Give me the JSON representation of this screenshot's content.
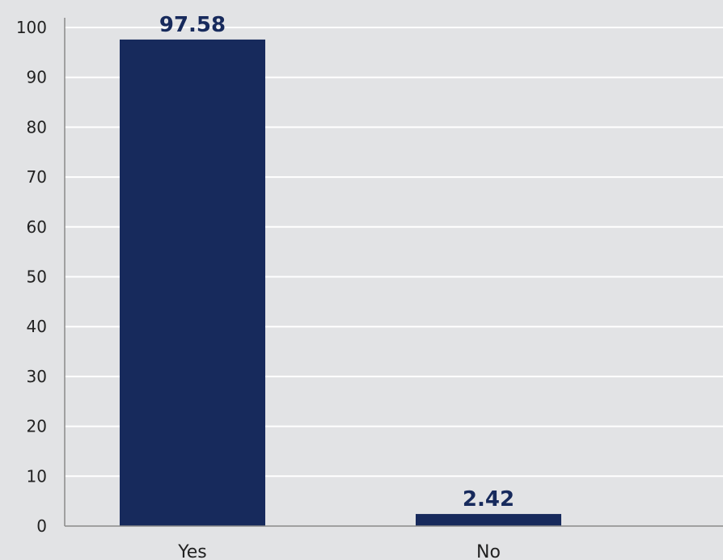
{
  "chart_data": {
    "type": "bar",
    "categories": [
      "Yes",
      "No"
    ],
    "values": [
      97.58,
      2.42
    ],
    "value_labels": [
      "97.58",
      "2.42"
    ],
    "ylim": [
      0,
      100
    ],
    "yticks": [
      0,
      10,
      20,
      30,
      40,
      50,
      60,
      70,
      80,
      90,
      100
    ],
    "ytick_labels": [
      "0",
      "10",
      "20",
      "30",
      "40",
      "50",
      "60",
      "70",
      "80",
      "90",
      "100"
    ],
    "title": "",
    "xlabel": "",
    "ylabel": "",
    "grid": true,
    "colors": {
      "background": "#e2e3e5",
      "bar": "#172a5c",
      "grid": "#ffffff",
      "axis": "#8a8a8a",
      "label": "#172a5c"
    }
  }
}
